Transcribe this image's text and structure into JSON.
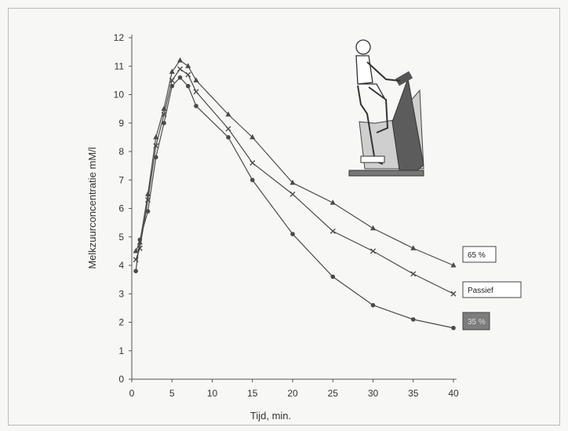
{
  "chart_data": {
    "type": "line",
    "title": "",
    "xlabel": "Tijd, min.",
    "ylabel": "Melkzuurconcentratie mM/l",
    "xlim": [
      0,
      40
    ],
    "ylim": [
      0,
      12
    ],
    "xticks": [
      0,
      5,
      10,
      15,
      20,
      25,
      30,
      35,
      40
    ],
    "yticks": [
      0,
      1,
      2,
      3,
      4,
      5,
      6,
      7,
      8,
      9,
      10,
      11,
      12
    ],
    "grid": false,
    "colors": {
      "line": "#4a4a4a",
      "axis": "#555555",
      "label_box_dark": "#7d7d7d"
    },
    "series": [
      {
        "name": "65 %",
        "marker": "triangle",
        "x": [
          0.5,
          1,
          2,
          3,
          4,
          5,
          6,
          7,
          8,
          12,
          15,
          20,
          25,
          30,
          35,
          40
        ],
        "y": [
          4.5,
          4.8,
          6.5,
          8.5,
          9.5,
          10.8,
          11.2,
          11.0,
          10.5,
          9.3,
          8.5,
          6.9,
          6.2,
          5.3,
          4.6,
          4.0
        ]
      },
      {
        "name": "Passief",
        "marker": "x",
        "x": [
          0.5,
          1,
          2,
          3,
          4,
          5,
          6,
          7,
          8,
          12,
          15,
          20,
          25,
          30,
          35,
          40
        ],
        "y": [
          4.2,
          4.6,
          6.3,
          8.2,
          9.3,
          10.5,
          10.9,
          10.7,
          10.1,
          8.8,
          7.6,
          6.5,
          5.2,
          4.5,
          3.7,
          3.0
        ]
      },
      {
        "name": "35 %",
        "marker": "dot",
        "x": [
          0.5,
          1,
          2,
          3,
          4,
          5,
          6,
          7,
          8,
          12,
          15,
          20,
          25,
          30,
          35,
          40
        ],
        "y": [
          3.8,
          4.9,
          5.9,
          7.8,
          9.0,
          10.3,
          10.6,
          10.3,
          9.6,
          8.5,
          7.0,
          5.1,
          3.6,
          2.6,
          2.1,
          1.8
        ]
      }
    ],
    "series_labels": [
      "65 %",
      "Passief",
      "35 %"
    ],
    "illustration": "exercise-bike-rider-icon"
  }
}
